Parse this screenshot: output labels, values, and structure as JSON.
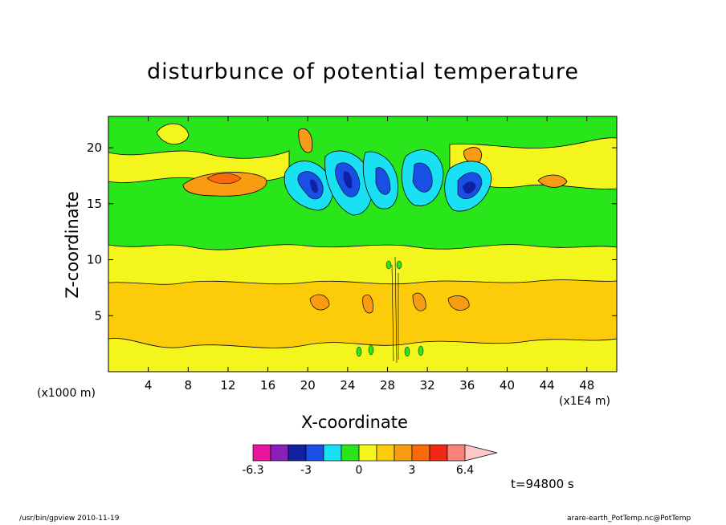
{
  "chart_data": {
    "type": "heatmap",
    "title": "disturbunce of potential temperature",
    "xlabel": "X-coordinate",
    "ylabel": "Z-coordinate",
    "x_unit": "(x1E4 m)",
    "z_unit": "(x1000 m)",
    "x_ticks": [
      4,
      8,
      12,
      16,
      20,
      24,
      28,
      32,
      36,
      40,
      44,
      48
    ],
    "z_ticks": [
      5,
      10,
      15,
      20
    ],
    "xlim": [
      0,
      51
    ],
    "zlim": [
      0,
      22.8
    ],
    "colorbar": {
      "colors": [
        "#e8149e",
        "#8a1eb8",
        "#1020a0",
        "#1a4fe6",
        "#19e0f2",
        "#29e61b",
        "#f5f51e",
        "#fccb0a",
        "#fa9b14",
        "#fa6a0a",
        "#f02814",
        "#fa8278",
        "#ffc8c8"
      ],
      "tick_labels": [
        "-6.3",
        "-3",
        "0",
        "3",
        "6.4"
      ]
    },
    "time_label": "t=94800 s",
    "footer_left": "/usr/bin/gpview   2010-11-19",
    "footer_right": "arare-earth_PotTemp.nc@PotTemp"
  }
}
